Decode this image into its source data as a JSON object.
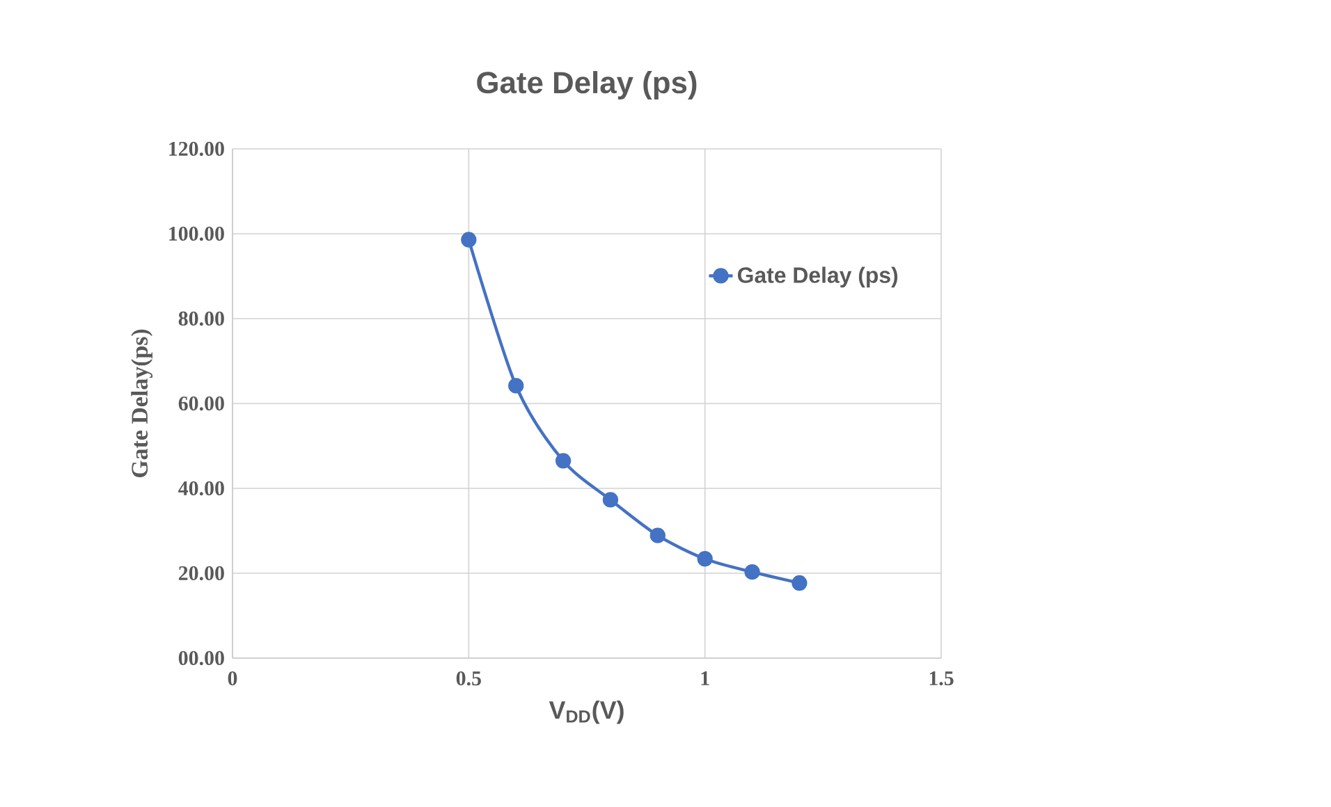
{
  "chart_data": {
    "type": "line",
    "title": "Gate Delay (ps)",
    "xlabel": "V$_{DD}$(V)",
    "ylabel": "Gate Delay(ps)",
    "x": [
      0.5,
      0.6,
      0.7,
      0.8,
      0.9,
      1.0,
      1.1,
      1.2
    ],
    "series": [
      {
        "name": "Gate Delay (ps)",
        "color": "#4472c4",
        "values": [
          98.6,
          64.2,
          46.5,
          37.3,
          28.9,
          23.4,
          20.3,
          17.7
        ]
      }
    ],
    "xlim": [
      0,
      1.5
    ],
    "xticks": [
      0,
      0.5,
      1,
      1.5
    ],
    "ylim": [
      0,
      120
    ],
    "yticks": [
      {
        "value": 0,
        "label": "00.00"
      },
      {
        "value": 20,
        "label": "20.00"
      },
      {
        "value": 40,
        "label": "40.00"
      },
      {
        "value": 60,
        "label": "60.00"
      },
      {
        "value": 80,
        "label": "80.00"
      },
      {
        "value": 100,
        "label": "100.00"
      },
      {
        "value": 120,
        "label": "120.00"
      }
    ],
    "grid": true,
    "legend": "top right",
    "marker": "circle",
    "line_style": "solid"
  }
}
